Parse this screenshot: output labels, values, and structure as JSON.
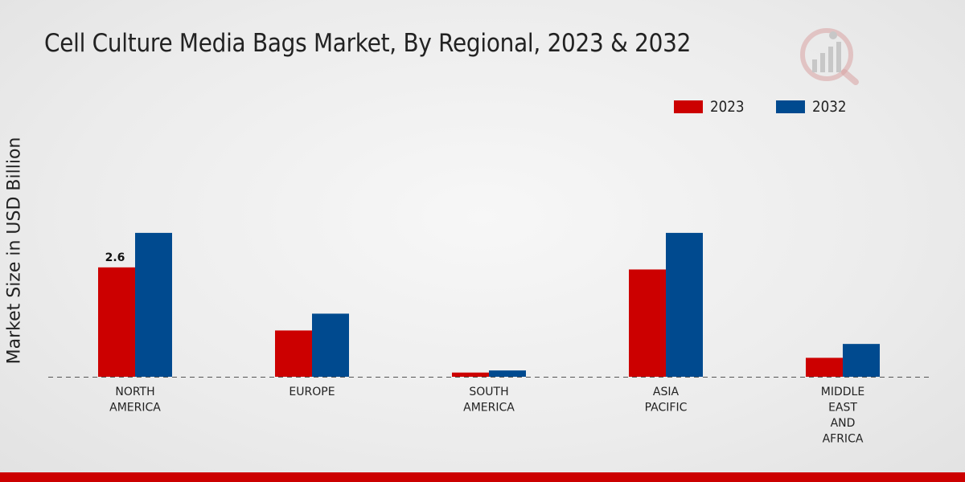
{
  "chart_data": {
    "type": "bar",
    "title": "Cell Culture Media Bags Market, By Regional, 2023 & 2032",
    "xlabel": "",
    "ylabel": "Market Size in USD Billion",
    "categories": [
      [
        "NORTH",
        "AMERICA"
      ],
      [
        "EUROPE"
      ],
      [
        "SOUTH",
        "AMERICA"
      ],
      [
        "ASIA",
        "PACIFIC"
      ],
      [
        "MIDDLE",
        "EAST",
        "AND",
        "AFRICA"
      ]
    ],
    "series": [
      {
        "name": "2023",
        "color": "#cc0000",
        "values": [
          2.6,
          1.1,
          0.1,
          2.55,
          0.45
        ]
      },
      {
        "name": "2032",
        "color": "#004a8f",
        "values": [
          3.42,
          1.5,
          0.15,
          3.42,
          0.78
        ]
      }
    ],
    "data_labels": [
      {
        "series": 0,
        "category": 0,
        "text": "2.6"
      }
    ],
    "ylim": [
      0,
      5.9
    ],
    "grid": false,
    "baseline_style": "dashed",
    "legend_position": "top-right"
  }
}
